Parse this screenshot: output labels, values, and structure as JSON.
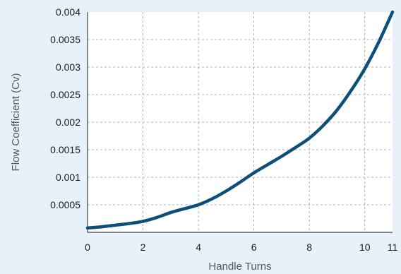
{
  "chart_data": {
    "type": "line",
    "title": "",
    "xlabel": "Handle Turns",
    "ylabel": "Flow Coefficient (Cv)",
    "xlim": [
      0,
      11
    ],
    "ylim": [
      0,
      0.004
    ],
    "grid": true,
    "x_ticks": [
      "0",
      "2",
      "4",
      "6",
      "8",
      "10",
      "11"
    ],
    "y_ticks": [
      "0.0005",
      "0.001",
      "0.0015",
      "0.002",
      "0.0025",
      "0.003",
      "0.0035",
      "0.004"
    ],
    "series": [
      {
        "x": [
          0,
          0.5,
          1,
          1.5,
          2,
          2.5,
          3,
          3.5,
          4,
          4.5,
          5,
          5.5,
          6,
          6.5,
          7,
          7.5,
          8,
          8.5,
          9,
          9.5,
          10,
          10.5,
          11
        ],
        "y": [
          8e-05,
          0.0001,
          0.00013,
          0.00016,
          0.0002,
          0.00027,
          0.00036,
          0.00043,
          0.0005,
          0.00061,
          0.00075,
          0.00091,
          0.00108,
          0.00123,
          0.00138,
          0.00154,
          0.00171,
          0.00194,
          0.00222,
          0.00257,
          0.00297,
          0.00345,
          0.004
        ]
      }
    ],
    "colors": {
      "line": "#0c4f7a",
      "grid": "#9a9a9a",
      "plot_bg": "#ffffff",
      "page_bg": "#e8f1f9",
      "axis": "#1a1a1a"
    }
  }
}
